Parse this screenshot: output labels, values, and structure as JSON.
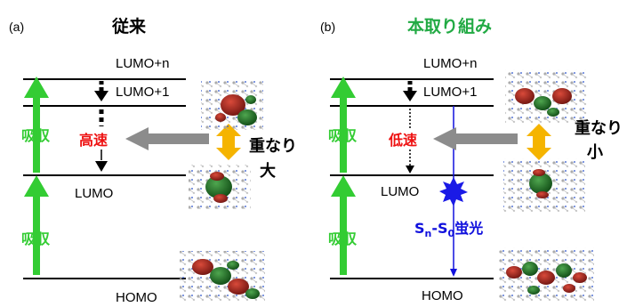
{
  "panel_a": {
    "letter": "(a)",
    "title": "従来",
    "levels": {
      "lumo_n": "LUMO+n",
      "lumo_1": "LUMO+1",
      "lumo": "LUMO",
      "homo": "HOMO"
    },
    "absorption_upper": "吸収",
    "absorption_lower": "吸収",
    "rate_label": "高速",
    "overlap_label_line1": "重なり",
    "overlap_label_line2": "大"
  },
  "panel_b": {
    "letter": "(b)",
    "title": "本取り組み",
    "levels": {
      "lumo_n": "LUMO+n",
      "lumo_1": "LUMO+1",
      "lumo": "LUMO",
      "homo": "HOMO"
    },
    "absorption_upper": "吸収",
    "absorption_lower": "吸収",
    "rate_label": "低速",
    "overlap_label_line1": "重なり",
    "overlap_label_line2": "小",
    "fluorescence": {
      "s": "S",
      "n_sub": "n",
      "dash": "-",
      "s0": "S",
      "zero_sub": "0",
      "suffix": "蛍光"
    }
  },
  "colors": {
    "absorption_green": "#33cc33",
    "title_green": "#22aa44",
    "rate_red": "#ee1111",
    "overlap_orange": "#f5b400",
    "grey_arrow": "#8c8c8c",
    "fluorescence_blue": "#1010dd"
  }
}
